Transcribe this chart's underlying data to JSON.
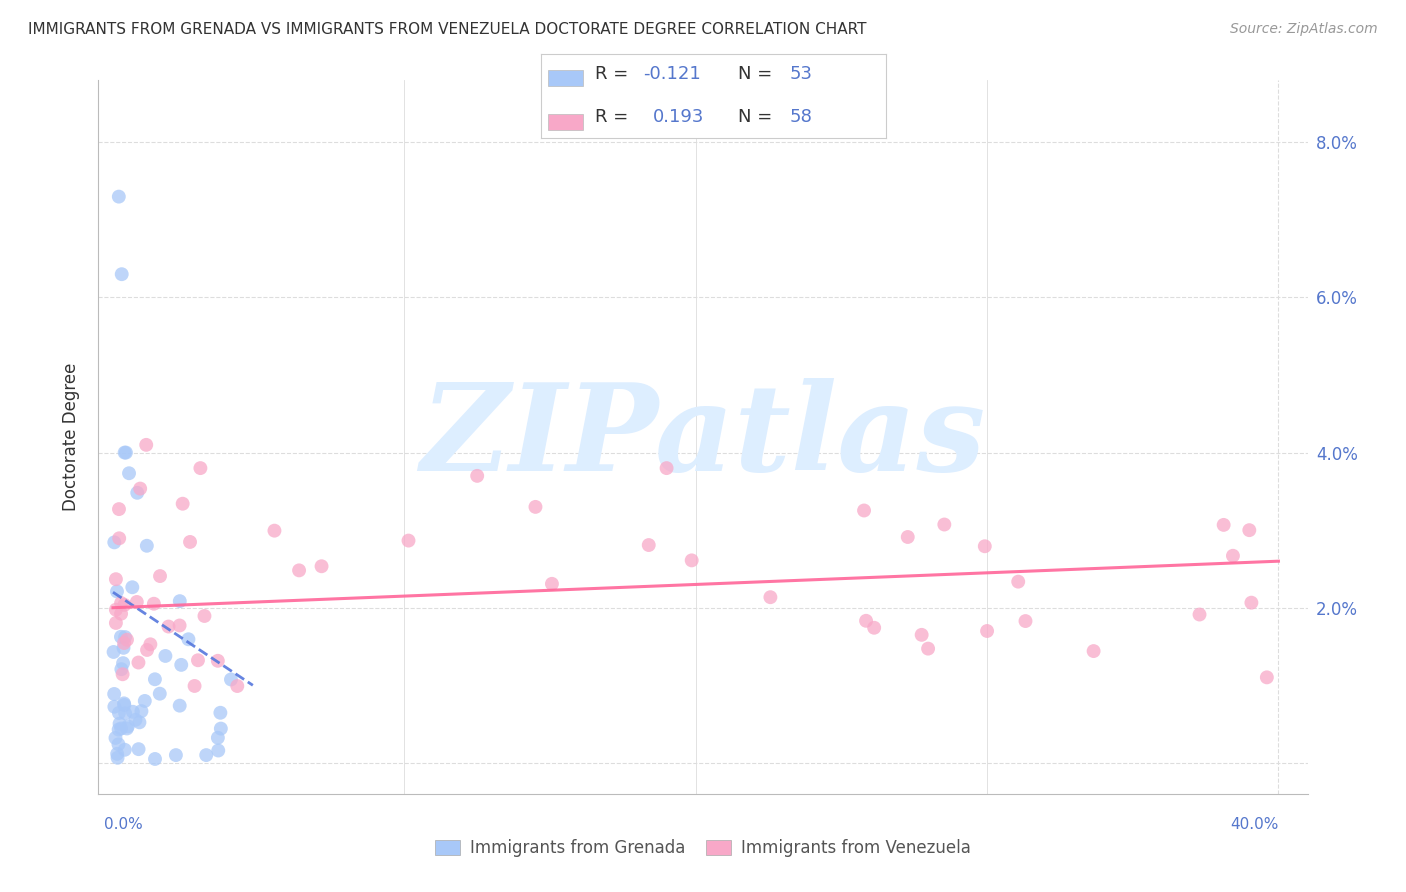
{
  "title": "IMMIGRANTS FROM GRENADA VS IMMIGRANTS FROM VENEZUELA DOCTORATE DEGREE CORRELATION CHART",
  "source": "Source: ZipAtlas.com",
  "ylabel": "Doctorate Degree",
  "ytick_positions": [
    0.0,
    0.02,
    0.04,
    0.06,
    0.08
  ],
  "ytick_labels": [
    "",
    "2.0%",
    "4.0%",
    "6.0%",
    "8.0%"
  ],
  "xlim": [
    -0.005,
    0.41
  ],
  "ylim": [
    -0.004,
    0.088
  ],
  "grenada_color": "#a8c8f8",
  "venezuela_color": "#f8a8c8",
  "trendline_grenada_color": "#5577dd",
  "trendline_venezuela_color": "#ff6699",
  "axis_color": "#bbbbbb",
  "grid_color": "#dddddd",
  "tick_label_color": "#5577cc",
  "text_color": "#333333",
  "source_color": "#999999",
  "watermark_text": "ZIPatlas",
  "watermark_color": "#ddeeff",
  "legend_r1_label": "R = ",
  "legend_r1_val": "-0.121",
  "legend_n1_label": "N = ",
  "legend_n1_val": "53",
  "legend_r2_label": "R =  ",
  "legend_r2_val": "0.193",
  "legend_n2_label": "N = ",
  "legend_n2_val": "58",
  "legend_r_color": "#5577cc",
  "legend_neg_color": "#5577cc",
  "bottom_label1": "Immigrants from Grenada",
  "bottom_label2": "Immigrants from Venezuela"
}
